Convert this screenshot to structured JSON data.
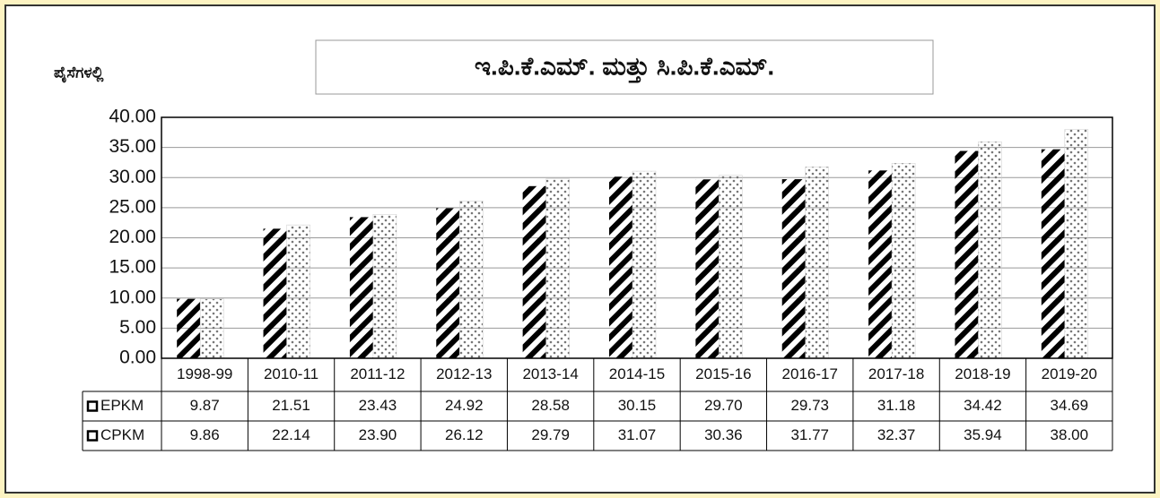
{
  "chart_data": {
    "type": "bar",
    "title": "ಇ.ಪಿ.ಕೆ.ಎಮ್. ಮತ್ತು ಸಿ.ಪಿ.ಕೆ.ಎಮ್.",
    "y_label": "ಪೈಸೆಗಳಲ್ಲಿ",
    "categories": [
      "1998-99",
      "2010-11",
      "2011-12",
      "2012-13",
      "2013-14",
      "2014-15",
      "2015-16",
      "2016-17",
      "2017-18",
      "2018-19",
      "2019-20"
    ],
    "series": [
      {
        "name": "EPKM",
        "color": "#000000",
        "pattern": "diagonal-hatch",
        "values": [
          9.87,
          21.51,
          23.43,
          24.92,
          28.58,
          30.15,
          29.7,
          29.73,
          31.18,
          34.42,
          34.69
        ],
        "value_labels": [
          "9.87",
          "21.51",
          "23.43",
          "24.92",
          "28.58",
          "30.15",
          "29.70",
          "29.73",
          "31.18",
          "34.42",
          "34.69"
        ]
      },
      {
        "name": "CPKM",
        "color": "#888888",
        "pattern": "dots",
        "values": [
          9.86,
          22.14,
          23.9,
          26.12,
          29.79,
          31.07,
          30.36,
          31.77,
          32.37,
          35.94,
          38.0
        ],
        "value_labels": [
          "9.86",
          "22.14",
          "23.90",
          "26.12",
          "29.79",
          "31.07",
          "30.36",
          "31.77",
          "32.37",
          "35.94",
          "38.00"
        ]
      }
    ],
    "ylim": [
      0,
      40
    ],
    "yticks": [
      {
        "value": 0,
        "label": "0.00"
      },
      {
        "value": 5,
        "label": "5.00"
      },
      {
        "value": 10,
        "label": "10.00"
      },
      {
        "value": 15,
        "label": "15.00"
      },
      {
        "value": 20,
        "label": "20.00"
      },
      {
        "value": 25,
        "label": "25.00"
      },
      {
        "value": 30,
        "label": "30.00"
      },
      {
        "value": 35,
        "label": "35.00"
      },
      {
        "value": 40,
        "label": "40.00"
      }
    ],
    "grid": true
  }
}
